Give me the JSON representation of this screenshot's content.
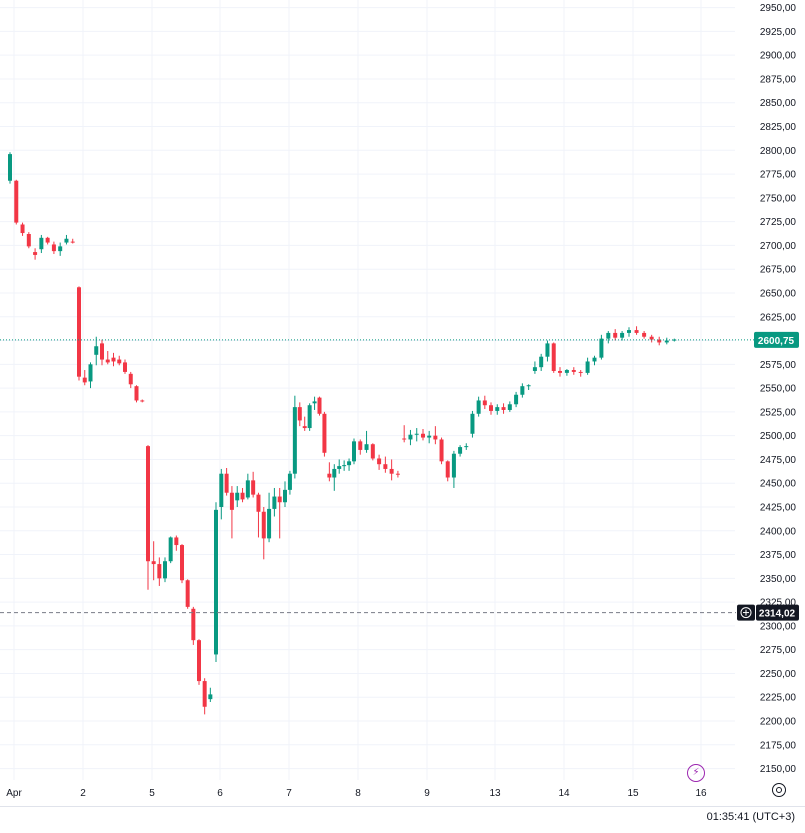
{
  "chart_data": {
    "type": "candlestick",
    "y_axis": {
      "ticks": [
        "2950,00",
        "2925,00",
        "2900,00",
        "2875,00",
        "2850,00",
        "2825,00",
        "2800,00",
        "2775,00",
        "2750,00",
        "2725,00",
        "2700,00",
        "2675,00",
        "2650,00",
        "2625,00",
        "2600,00",
        "2575,00",
        "2550,00",
        "2525,00",
        "2500,00",
        "2475,00",
        "2450,00",
        "2425,00",
        "2400,00",
        "2375,00",
        "2350,00",
        "2325,00",
        "2300,00",
        "2275,00",
        "2250,00",
        "2225,00",
        "2200,00",
        "2175,00",
        "2150,00"
      ],
      "ylim": [
        2138,
        2958
      ]
    },
    "x_axis": {
      "ticks": [
        {
          "label": "Apr",
          "session": 0
        },
        {
          "label": "2",
          "session": 1
        },
        {
          "label": "5",
          "session": 2
        },
        {
          "label": "6",
          "session": 3
        },
        {
          "label": "7",
          "session": 4
        },
        {
          "label": "8",
          "session": 5
        },
        {
          "label": "9",
          "session": 6
        },
        {
          "label": "13",
          "session": 7
        },
        {
          "label": "14",
          "session": 8
        },
        {
          "label": "15",
          "session": 9
        },
        {
          "label": "16",
          "session": 10
        }
      ]
    },
    "current_price": {
      "label": "2600,75",
      "value": 2600.75,
      "color": "#089981"
    },
    "crosshair_price": {
      "label": "2314,02",
      "value": 2314.02
    },
    "candles": [
      {
        "o": 2768,
        "h": 2798,
        "l": 2765,
        "c": 2796
      },
      {
        "o": 2768,
        "h": 2769,
        "l": 2722,
        "c": 2724
      },
      {
        "o": 2722,
        "h": 2724,
        "l": 2710,
        "c": 2713
      },
      {
        "o": 2712,
        "h": 2714,
        "l": 2697,
        "c": 2699
      },
      {
        "o": 2693,
        "h": 2697,
        "l": 2685,
        "c": 2690
      },
      {
        "o": 2696,
        "h": 2711,
        "l": 2692,
        "c": 2708
      },
      {
        "o": 2708,
        "h": 2709,
        "l": 2701,
        "c": 2703
      },
      {
        "o": 2701,
        "h": 2704,
        "l": 2691,
        "c": 2694
      },
      {
        "o": 2694,
        "h": 2703,
        "l": 2689,
        "c": 2699
      },
      {
        "o": 2703,
        "h": 2711,
        "l": 2701,
        "c": 2707
      },
      {
        "o": 2704,
        "h": 2707,
        "l": 2702,
        "c": 2703
      },
      {
        "o": 2656,
        "h": 2657,
        "l": 2558,
        "c": 2562
      },
      {
        "o": 2561,
        "h": 2569,
        "l": 2553,
        "c": 2556
      },
      {
        "o": 2557,
        "h": 2577,
        "l": 2550,
        "c": 2575
      },
      {
        "o": 2585,
        "h": 2604,
        "l": 2574,
        "c": 2594
      },
      {
        "o": 2597,
        "h": 2601,
        "l": 2574,
        "c": 2580
      },
      {
        "o": 2580,
        "h": 2589,
        "l": 2575,
        "c": 2577
      },
      {
        "o": 2582,
        "h": 2587,
        "l": 2573,
        "c": 2578
      },
      {
        "o": 2580,
        "h": 2584,
        "l": 2574,
        "c": 2576
      },
      {
        "o": 2577,
        "h": 2580,
        "l": 2565,
        "c": 2567
      },
      {
        "o": 2565,
        "h": 2567,
        "l": 2550,
        "c": 2554
      },
      {
        "o": 2552,
        "h": 2553,
        "l": 2535,
        "c": 2537
      },
      {
        "o": 2537,
        "h": 2538,
        "l": 2535,
        "c": 2536
      },
      {
        "o": 2489,
        "h": 2490,
        "l": 2338,
        "c": 2368
      },
      {
        "o": 2368,
        "h": 2389,
        "l": 2348,
        "c": 2365
      },
      {
        "o": 2365,
        "h": 2372,
        "l": 2342,
        "c": 2350
      },
      {
        "o": 2350,
        "h": 2372,
        "l": 2346,
        "c": 2368
      },
      {
        "o": 2368,
        "h": 2394,
        "l": 2366,
        "c": 2393
      },
      {
        "o": 2393,
        "h": 2395,
        "l": 2379,
        "c": 2385
      },
      {
        "o": 2385,
        "h": 2386,
        "l": 2345,
        "c": 2348
      },
      {
        "o": 2348,
        "h": 2349,
        "l": 2318,
        "c": 2320
      },
      {
        "o": 2318,
        "h": 2320,
        "l": 2280,
        "c": 2285
      },
      {
        "o": 2285,
        "h": 2286,
        "l": 2238,
        "c": 2242
      },
      {
        "o": 2242,
        "h": 2245,
        "l": 2207,
        "c": 2215
      },
      {
        "o": 2223,
        "h": 2235,
        "l": 2220,
        "c": 2228
      },
      {
        "o": 2270,
        "h": 2430,
        "l": 2262,
        "c": 2422
      },
      {
        "o": 2425,
        "h": 2465,
        "l": 2412,
        "c": 2460
      },
      {
        "o": 2460,
        "h": 2466,
        "l": 2437,
        "c": 2440
      },
      {
        "o": 2440,
        "h": 2447,
        "l": 2392,
        "c": 2422
      },
      {
        "o": 2432,
        "h": 2447,
        "l": 2425,
        "c": 2440
      },
      {
        "o": 2440,
        "h": 2445,
        "l": 2430,
        "c": 2433
      },
      {
        "o": 2435,
        "h": 2460,
        "l": 2433,
        "c": 2453
      },
      {
        "o": 2453,
        "h": 2462,
        "l": 2435,
        "c": 2438
      },
      {
        "o": 2438,
        "h": 2440,
        "l": 2393,
        "c": 2420
      },
      {
        "o": 2420,
        "h": 2425,
        "l": 2370,
        "c": 2392
      },
      {
        "o": 2392,
        "h": 2440,
        "l": 2388,
        "c": 2423
      },
      {
        "o": 2423,
        "h": 2445,
        "l": 2415,
        "c": 2436
      },
      {
        "o": 2436,
        "h": 2445,
        "l": 2392,
        "c": 2430
      },
      {
        "o": 2430,
        "h": 2452,
        "l": 2425,
        "c": 2443
      },
      {
        "o": 2443,
        "h": 2463,
        "l": 2438,
        "c": 2460
      },
      {
        "o": 2460,
        "h": 2542,
        "l": 2455,
        "c": 2530
      },
      {
        "o": 2530,
        "h": 2535,
        "l": 2510,
        "c": 2516
      },
      {
        "o": 2510,
        "h": 2520,
        "l": 2505,
        "c": 2508
      },
      {
        "o": 2508,
        "h": 2534,
        "l": 2505,
        "c": 2532
      },
      {
        "o": 2534,
        "h": 2541,
        "l": 2527,
        "c": 2536
      },
      {
        "o": 2540,
        "h": 2541,
        "l": 2521,
        "c": 2523
      },
      {
        "o": 2523,
        "h": 2525,
        "l": 2478,
        "c": 2482
      },
      {
        "o": 2460,
        "h": 2472,
        "l": 2452,
        "c": 2456
      },
      {
        "o": 2456,
        "h": 2470,
        "l": 2442,
        "c": 2465
      },
      {
        "o": 2465,
        "h": 2475,
        "l": 2460,
        "c": 2468
      },
      {
        "o": 2468,
        "h": 2474,
        "l": 2463,
        "c": 2469
      },
      {
        "o": 2469,
        "h": 2476,
        "l": 2463,
        "c": 2473
      },
      {
        "o": 2473,
        "h": 2497,
        "l": 2470,
        "c": 2494
      },
      {
        "o": 2494,
        "h": 2496,
        "l": 2480,
        "c": 2485
      },
      {
        "o": 2485,
        "h": 2505,
        "l": 2482,
        "c": 2491
      },
      {
        "o": 2491,
        "h": 2492,
        "l": 2474,
        "c": 2476
      },
      {
        "o": 2476,
        "h": 2480,
        "l": 2464,
        "c": 2470
      },
      {
        "o": 2470,
        "h": 2478,
        "l": 2461,
        "c": 2465
      },
      {
        "o": 2465,
        "h": 2475,
        "l": 2453,
        "c": 2460
      },
      {
        "o": 2460,
        "h": 2463,
        "l": 2456,
        "c": 2459
      },
      {
        "o": 2497,
        "h": 2511,
        "l": 2493,
        "c": 2496
      },
      {
        "o": 2496,
        "h": 2506,
        "l": 2490,
        "c": 2501
      },
      {
        "o": 2501,
        "h": 2508,
        "l": 2494,
        "c": 2502
      },
      {
        "o": 2502,
        "h": 2507,
        "l": 2495,
        "c": 2498
      },
      {
        "o": 2498,
        "h": 2505,
        "l": 2492,
        "c": 2500
      },
      {
        "o": 2500,
        "h": 2510,
        "l": 2491,
        "c": 2496
      },
      {
        "o": 2496,
        "h": 2498,
        "l": 2470,
        "c": 2473
      },
      {
        "o": 2473,
        "h": 2474,
        "l": 2452,
        "c": 2456
      },
      {
        "o": 2456,
        "h": 2484,
        "l": 2445,
        "c": 2481
      },
      {
        "o": 2481,
        "h": 2490,
        "l": 2478,
        "c": 2488
      },
      {
        "o": 2488,
        "h": 2492,
        "l": 2485,
        "c": 2489
      },
      {
        "o": 2502,
        "h": 2526,
        "l": 2498,
        "c": 2523
      },
      {
        "o": 2523,
        "h": 2541,
        "l": 2520,
        "c": 2537
      },
      {
        "o": 2537,
        "h": 2542,
        "l": 2528,
        "c": 2532
      },
      {
        "o": 2532,
        "h": 2535,
        "l": 2522,
        "c": 2526
      },
      {
        "o": 2526,
        "h": 2533,
        "l": 2522,
        "c": 2530
      },
      {
        "o": 2530,
        "h": 2534,
        "l": 2523,
        "c": 2527
      },
      {
        "o": 2527,
        "h": 2536,
        "l": 2525,
        "c": 2533
      },
      {
        "o": 2533,
        "h": 2546,
        "l": 2530,
        "c": 2543
      },
      {
        "o": 2543,
        "h": 2555,
        "l": 2540,
        "c": 2552
      },
      {
        "o": 2552,
        "h": 2554,
        "l": 2548,
        "c": 2553
      },
      {
        "o": 2568,
        "h": 2578,
        "l": 2565,
        "c": 2572
      },
      {
        "o": 2572,
        "h": 2586,
        "l": 2568,
        "c": 2583
      },
      {
        "o": 2583,
        "h": 2600,
        "l": 2578,
        "c": 2597
      },
      {
        "o": 2597,
        "h": 2598,
        "l": 2566,
        "c": 2568
      },
      {
        "o": 2568,
        "h": 2572,
        "l": 2562,
        "c": 2566
      },
      {
        "o": 2566,
        "h": 2570,
        "l": 2563,
        "c": 2569
      },
      {
        "o": 2569,
        "h": 2572,
        "l": 2564,
        "c": 2567
      },
      {
        "o": 2567,
        "h": 2569,
        "l": 2562,
        "c": 2566
      },
      {
        "o": 2566,
        "h": 2582,
        "l": 2564,
        "c": 2578
      },
      {
        "o": 2578,
        "h": 2584,
        "l": 2574,
        "c": 2582
      },
      {
        "o": 2582,
        "h": 2606,
        "l": 2580,
        "c": 2602
      },
      {
        "o": 2602,
        "h": 2610,
        "l": 2597,
        "c": 2608
      },
      {
        "o": 2608,
        "h": 2612,
        "l": 2600,
        "c": 2603
      },
      {
        "o": 2603,
        "h": 2610,
        "l": 2600,
        "c": 2608
      },
      {
        "o": 2608,
        "h": 2614,
        "l": 2604,
        "c": 2611
      },
      {
        "o": 2611,
        "h": 2615,
        "l": 2606,
        "c": 2608
      },
      {
        "o": 2608,
        "h": 2610,
        "l": 2602,
        "c": 2604
      },
      {
        "o": 2604,
        "h": 2606,
        "l": 2598,
        "c": 2601
      },
      {
        "o": 2601,
        "h": 2604,
        "l": 2595,
        "c": 2598
      },
      {
        "o": 2598,
        "h": 2603,
        "l": 2596,
        "c": 2600
      },
      {
        "o": 2600,
        "h": 2602,
        "l": 2599,
        "c": 2601
      }
    ],
    "colors": {
      "up": "#089981",
      "down": "#f23645",
      "grid": "#f0f3fa"
    },
    "grid": true
  },
  "status_bar": {
    "clock": "01:35:41 (UTC+3)"
  },
  "icons": {
    "settings": "settings-icon",
    "bolt": "lightning-icon",
    "add": "plus-icon"
  }
}
